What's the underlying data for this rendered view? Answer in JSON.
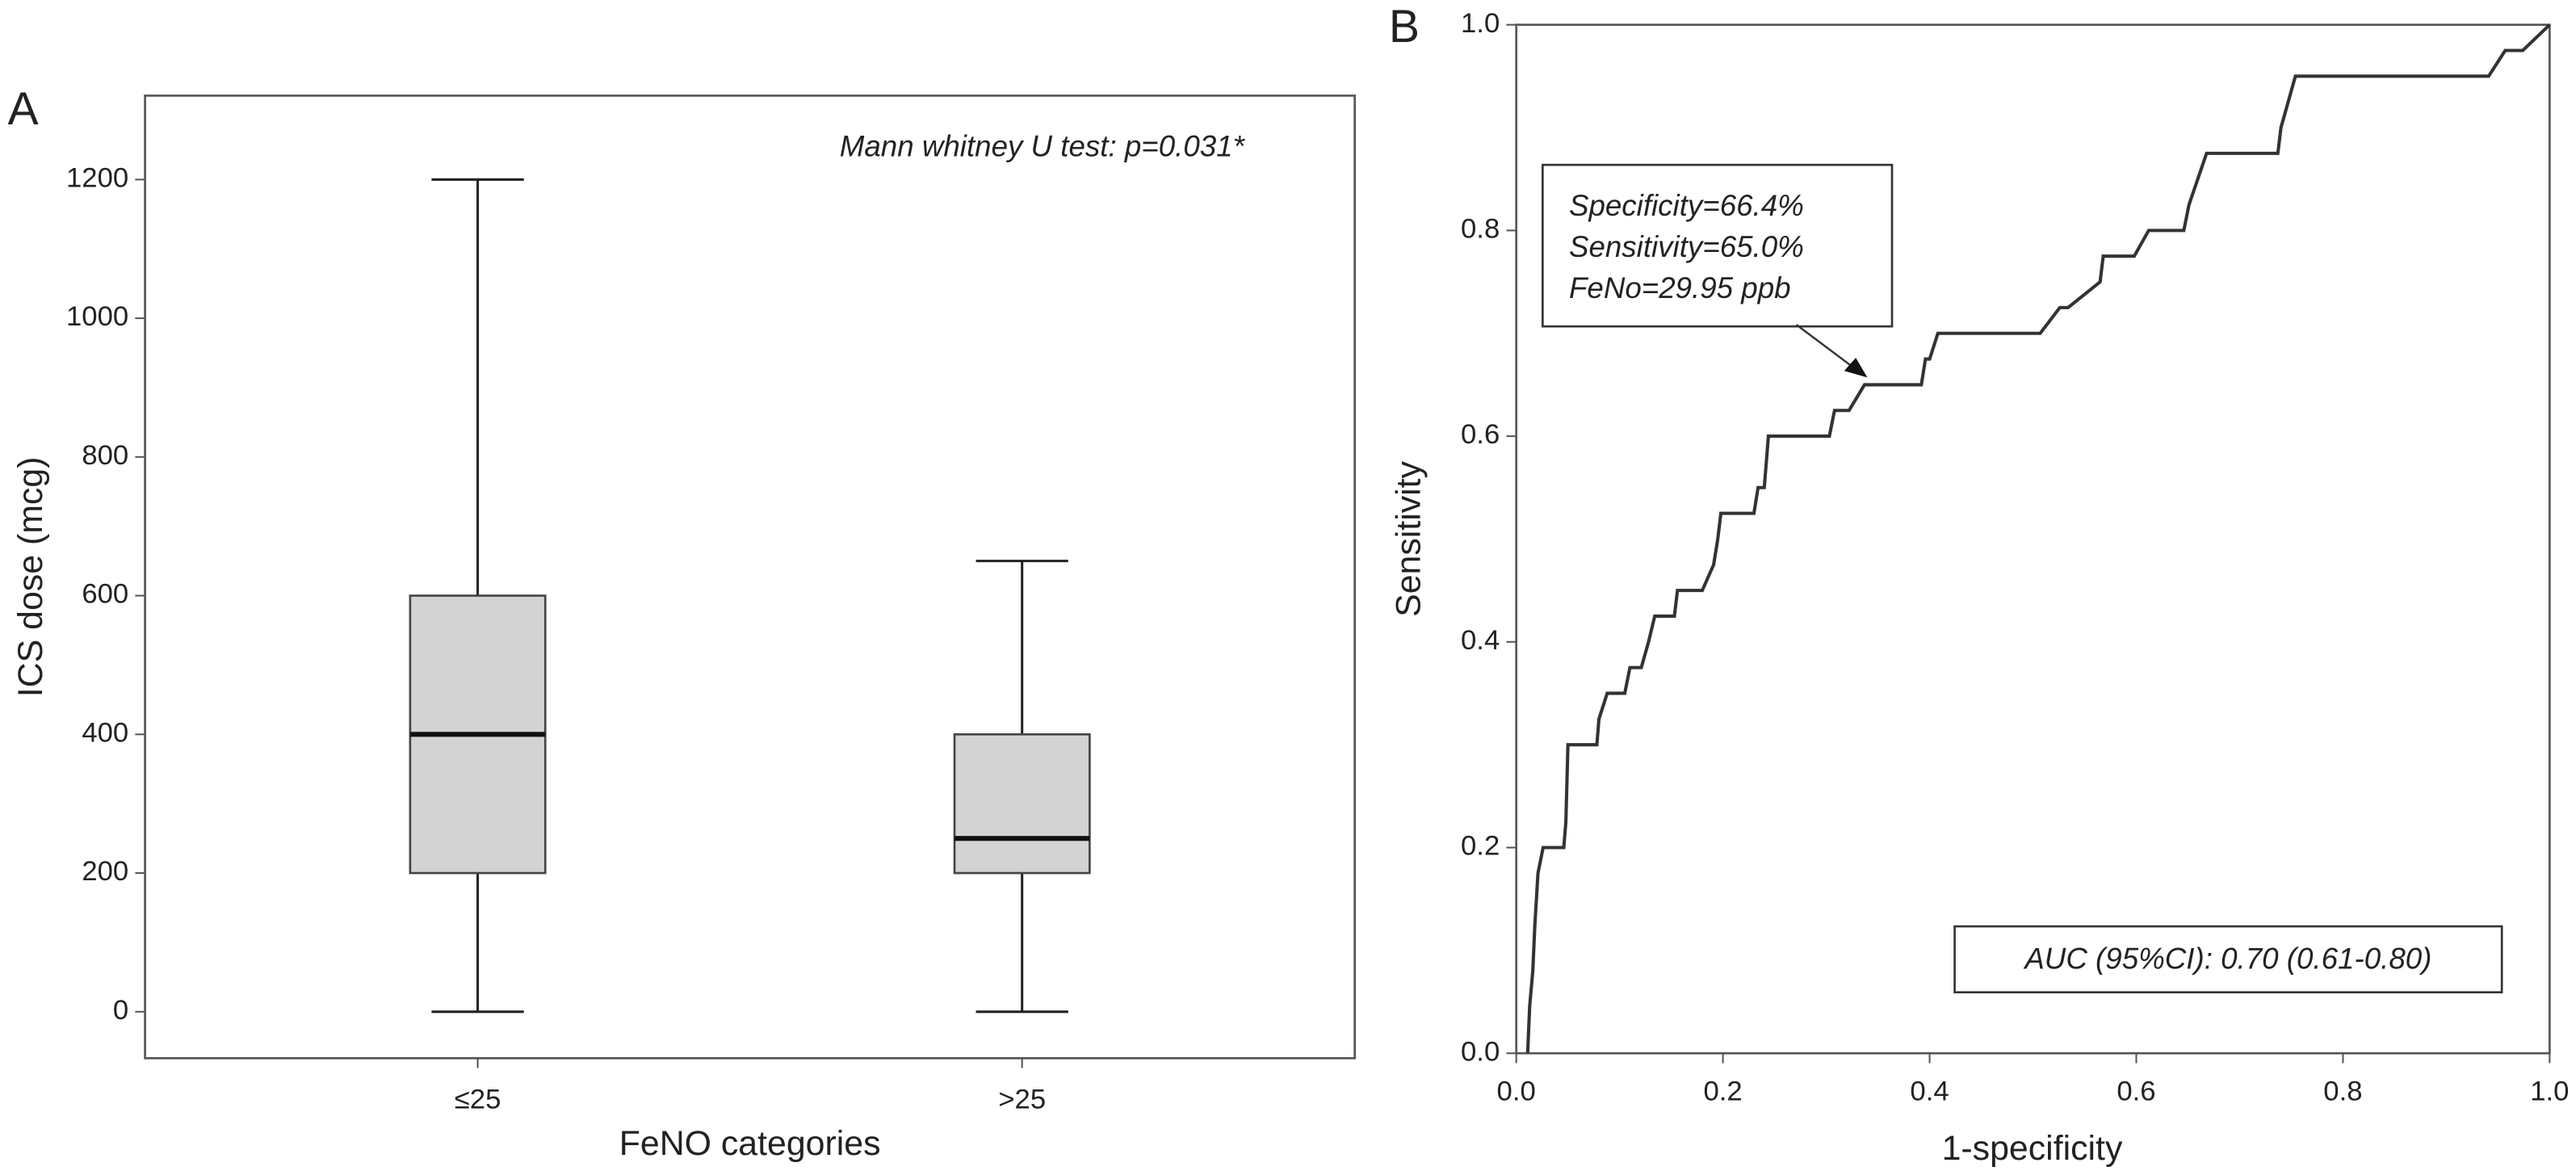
{
  "chart_data": [
    {
      "type": "box",
      "panel_label": "A",
      "y_label": "ICS dose (mcg)",
      "x_label": "FeNO categories",
      "annotation": "Mann whitney U test: p=0.031*",
      "categories": [
        "≤25",
        ">25"
      ],
      "color": "#d3d3d3",
      "boxes": [
        {
          "min": 0,
          "q1": 200,
          "median": 400,
          "q3": 600,
          "max": 1200
        },
        {
          "min": 0,
          "q1": 200,
          "median": 250,
          "q3": 400,
          "max": 650
        }
      ],
      "ylim": [
        -67,
        1321
      ],
      "yticks": [
        0,
        200,
        400,
        600,
        800,
        1000,
        1200
      ]
    },
    {
      "type": "line",
      "panel_label": "B",
      "y_label": "Sensitivity",
      "x_label": "1-specificity",
      "annotation": [
        "Specificity=66.4%",
        "Sensitivity=65.0%",
        "FeNo=29.95 ppb"
      ],
      "auc_annotation": "AUC (95%CI): 0.70 (0.61-0.80)",
      "color": "#333333",
      "x": [
        0.011,
        0.013,
        0.016,
        0.018,
        0.021,
        0.026,
        0.046,
        0.048,
        0.05,
        0.078,
        0.08,
        0.088,
        0.105,
        0.11,
        0.121,
        0.128,
        0.134,
        0.153,
        0.156,
        0.18,
        0.191,
        0.195,
        0.198,
        0.23,
        0.234,
        0.24,
        0.244,
        0.303,
        0.308,
        0.322,
        0.337,
        0.392,
        0.396,
        0.4,
        0.408,
        0.507,
        0.526,
        0.534,
        0.565,
        0.568,
        0.598,
        0.612,
        0.646,
        0.651,
        0.668,
        0.737,
        0.74,
        0.754,
        0.941,
        0.957,
        0.974,
        1.0
      ],
      "values": [
        0,
        0.046,
        0.08,
        0.125,
        0.175,
        0.2,
        0.2,
        0.225,
        0.3,
        0.3,
        0.325,
        0.35,
        0.35,
        0.375,
        0.375,
        0.4,
        0.425,
        0.425,
        0.45,
        0.45,
        0.475,
        0.5,
        0.525,
        0.525,
        0.55,
        0.55,
        0.6,
        0.6,
        0.625,
        0.625,
        0.65,
        0.65,
        0.675,
        0.675,
        0.7,
        0.7,
        0.725,
        0.725,
        0.75,
        0.775,
        0.775,
        0.8,
        0.8,
        0.825,
        0.875,
        0.875,
        0.9,
        0.95,
        0.95,
        0.975,
        0.975,
        1.0
      ],
      "xlim": [
        0,
        1
      ],
      "ylim": [
        0,
        1
      ],
      "xticks": [
        {
          "value": 0,
          "label": "0.0"
        },
        0.2,
        0.4,
        0.6,
        0.8,
        {
          "value": 1,
          "label": "1.0"
        }
      ],
      "yticks": [
        {
          "value": 0,
          "label": "0.0"
        },
        0.2,
        0.4,
        0.6,
        0.8,
        {
          "value": 1,
          "label": "1.0"
        }
      ]
    }
  ]
}
